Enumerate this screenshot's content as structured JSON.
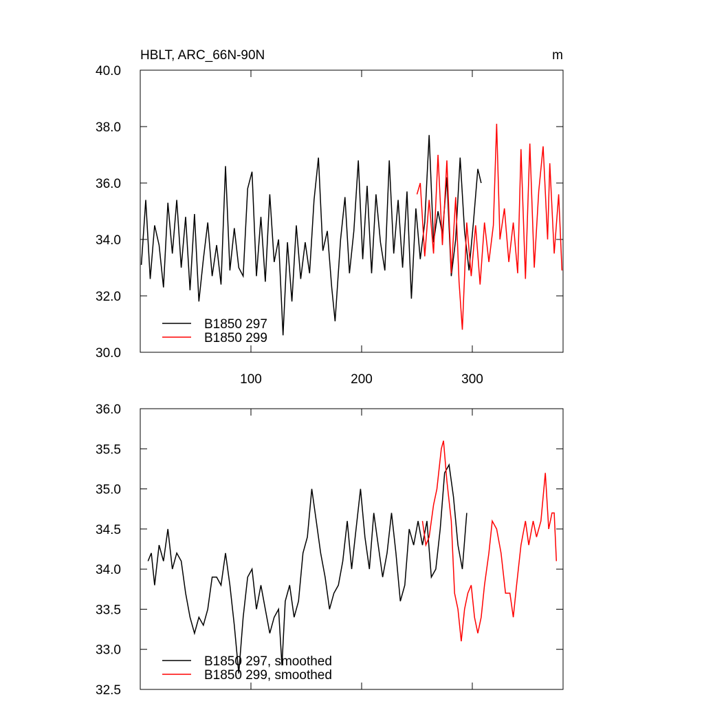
{
  "chart_data": [
    {
      "type": "line",
      "title": "HBLT, ARC_66N-90N",
      "units_label": "m",
      "xlim": [
        0,
        382
      ],
      "xticks": [
        100,
        200,
        300
      ],
      "ylim": [
        30,
        40
      ],
      "yticks": [
        {
          "value": 30,
          "label": "30.0"
        },
        {
          "value": 32,
          "label": "32.0"
        },
        {
          "value": 34,
          "label": "34.0"
        },
        {
          "value": 36,
          "label": "36.0"
        },
        {
          "value": 38,
          "label": "38.0"
        },
        {
          "value": 40,
          "label": "40.0"
        }
      ],
      "legend": "lower left",
      "series": [
        {
          "name": "B1850 297",
          "color": "#000000",
          "x": [
            1,
            5,
            9,
            13,
            17,
            21,
            25,
            29,
            33,
            37,
            41,
            45,
            49,
            53,
            57,
            61,
            65,
            69,
            73,
            77,
            81,
            85,
            89,
            93,
            97,
            101,
            105,
            109,
            113,
            117,
            121,
            125,
            129,
            133,
            137,
            141,
            145,
            149,
            153,
            157,
            161,
            165,
            169,
            173,
            176,
            181,
            185,
            189,
            193,
            197,
            201,
            205,
            209,
            213,
            217,
            221,
            225,
            229,
            233,
            237,
            241,
            245,
            249,
            253,
            257,
            261,
            265,
            269,
            273,
            277,
            281,
            285,
            289,
            293,
            297,
            301,
            305,
            308
          ],
          "values": [
            33.1,
            35.4,
            32.6,
            34.5,
            33.8,
            32.3,
            35.3,
            33.5,
            35.4,
            33.0,
            34.8,
            32.2,
            34.9,
            31.8,
            33.3,
            34.6,
            32.7,
            33.8,
            32.4,
            36.6,
            32.9,
            34.4,
            33.0,
            32.7,
            35.8,
            36.4,
            32.7,
            34.8,
            32.5,
            35.6,
            33.2,
            34.0,
            30.6,
            33.9,
            31.8,
            34.5,
            32.6,
            33.9,
            32.8,
            35.4,
            36.9,
            33.6,
            34.3,
            32.3,
            31.1,
            34.0,
            35.5,
            32.8,
            34.3,
            36.8,
            33.3,
            35.9,
            32.8,
            35.6,
            33.9,
            32.9,
            36.8,
            33.5,
            35.4,
            33.0,
            35.7,
            31.9,
            35.1,
            33.3,
            34.6,
            37.7,
            33.9,
            35.0,
            34.2,
            36.2,
            32.7,
            34.0,
            36.9,
            34.3,
            32.9,
            34.6,
            36.5,
            36.0
          ]
        },
        {
          "name": "B1850 299",
          "color": "#ff0000",
          "x": [
            250,
            253,
            257,
            261,
            265,
            269,
            273,
            277,
            281,
            285,
            288,
            291,
            295,
            299,
            303,
            307,
            311,
            315,
            319,
            322,
            325,
            329,
            333,
            337,
            341,
            344,
            348,
            352,
            356,
            360,
            364,
            368,
            370,
            374,
            378,
            381
          ],
          "values": [
            35.6,
            36.0,
            33.4,
            35.4,
            33.5,
            37.0,
            33.8,
            36.8,
            32.8,
            35.5,
            32.5,
            30.8,
            34.6,
            32.7,
            34.5,
            32.4,
            34.6,
            33.2,
            34.5,
            38.1,
            34.0,
            35.1,
            33.2,
            34.6,
            32.8,
            37.2,
            32.6,
            37.4,
            33.0,
            35.7,
            37.3,
            34.0,
            36.7,
            33.5,
            35.6,
            32.9
          ]
        }
      ]
    },
    {
      "type": "line",
      "xlim": [
        0,
        382
      ],
      "xticks": [
        100,
        200,
        300
      ],
      "ylim": [
        32.5,
        36
      ],
      "yticks": [
        32.5,
        {
          "value": 33,
          "label": "33.0"
        },
        33.5,
        {
          "value": 34,
          "label": "34.0"
        },
        34.5,
        {
          "value": 35,
          "label": "35.0"
        },
        35.5,
        {
          "value": 36,
          "label": "36.0"
        }
      ],
      "legend": "lower left",
      "series": [
        {
          "name": "B1850 297, smoothed",
          "color": "#000000",
          "x": [
            7,
            10,
            13,
            17,
            21,
            25,
            29,
            33,
            37,
            41,
            45,
            49,
            53,
            57,
            61,
            65,
            69,
            73,
            77,
            81,
            85,
            89,
            93,
            97,
            101,
            105,
            109,
            113,
            117,
            121,
            125,
            128,
            131,
            135,
            139,
            143,
            147,
            151,
            155,
            159,
            163,
            167,
            171,
            175,
            179,
            183,
            187,
            191,
            195,
            199,
            203,
            207,
            211,
            215,
            219,
            223,
            227,
            231,
            235,
            239,
            243,
            247,
            251,
            255,
            259,
            263,
            267,
            271,
            275,
            279,
            283,
            287,
            291,
            295
          ],
          "values": [
            34.1,
            34.2,
            33.8,
            34.3,
            34.1,
            34.5,
            34.0,
            34.2,
            34.1,
            33.7,
            33.4,
            33.2,
            33.4,
            33.3,
            33.5,
            33.9,
            33.9,
            33.8,
            34.2,
            33.8,
            33.3,
            32.7,
            33.4,
            33.9,
            34.0,
            33.5,
            33.8,
            33.5,
            33.2,
            33.4,
            33.5,
            32.8,
            33.6,
            33.8,
            33.4,
            33.6,
            34.2,
            34.4,
            35.0,
            34.6,
            34.2,
            33.9,
            33.5,
            33.7,
            33.8,
            34.1,
            34.6,
            34.0,
            34.5,
            35.0,
            34.4,
            34.0,
            34.7,
            34.3,
            33.9,
            34.2,
            34.7,
            34.2,
            33.6,
            33.8,
            34.5,
            34.3,
            34.6,
            34.3,
            34.6,
            33.9,
            34.0,
            34.5,
            35.2,
            35.3,
            34.9,
            34.3,
            34.0,
            34.7
          ]
        },
        {
          "name": "B1850 299, smoothed",
          "color": "#ff0000",
          "x": [
            255,
            258,
            261,
            265,
            268,
            272,
            274,
            277,
            281,
            284,
            287,
            290,
            293,
            296,
            299,
            302,
            305,
            308,
            311,
            315,
            318,
            322,
            326,
            330,
            334,
            337,
            340,
            344,
            348,
            351,
            355,
            358,
            362,
            366,
            369,
            372,
            374,
            376
          ],
          "values": [
            34.6,
            34.3,
            34.4,
            34.8,
            35.0,
            35.5,
            35.6,
            35.1,
            34.6,
            33.7,
            33.5,
            33.1,
            33.5,
            33.7,
            33.8,
            33.4,
            33.2,
            33.4,
            33.8,
            34.2,
            34.6,
            34.5,
            34.2,
            33.7,
            33.7,
            33.4,
            33.8,
            34.3,
            34.6,
            34.3,
            34.6,
            34.4,
            34.6,
            35.2,
            34.5,
            34.7,
            34.7,
            34.1
          ]
        }
      ]
    }
  ]
}
